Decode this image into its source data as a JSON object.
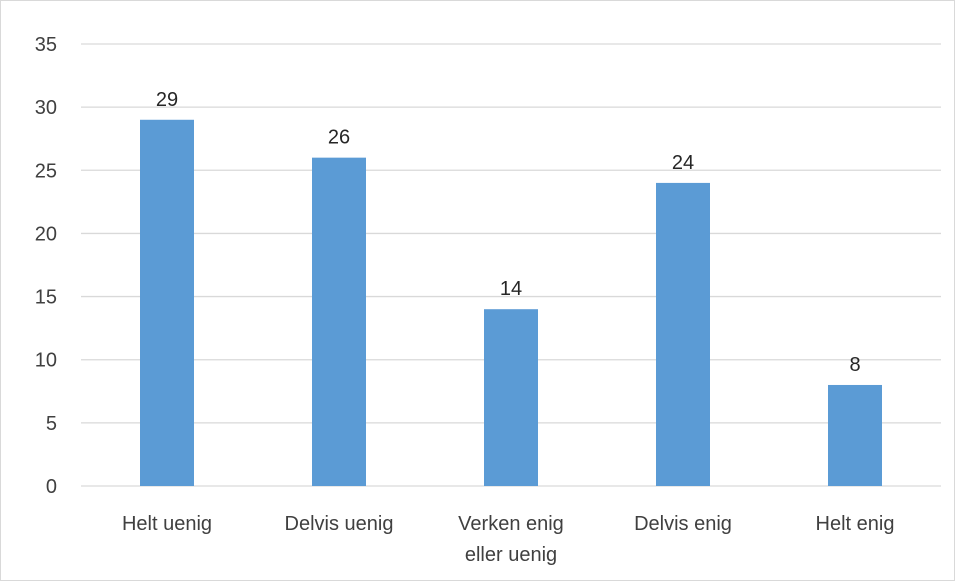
{
  "chart_data": {
    "type": "bar",
    "categories": [
      [
        "Helt uenig"
      ],
      [
        "Delvis uenig"
      ],
      [
        "Verken enig",
        "eller uenig"
      ],
      [
        "Delvis enig"
      ],
      [
        "Helt enig"
      ]
    ],
    "values": [
      29,
      26,
      14,
      24,
      8
    ],
    "ylim": [
      0,
      35
    ],
    "yticks": [
      0,
      5,
      10,
      15,
      20,
      25,
      30,
      35
    ],
    "grid": true,
    "bar_color": "#5b9bd5",
    "grid_color": "#d9d9d9",
    "legend": "none"
  }
}
